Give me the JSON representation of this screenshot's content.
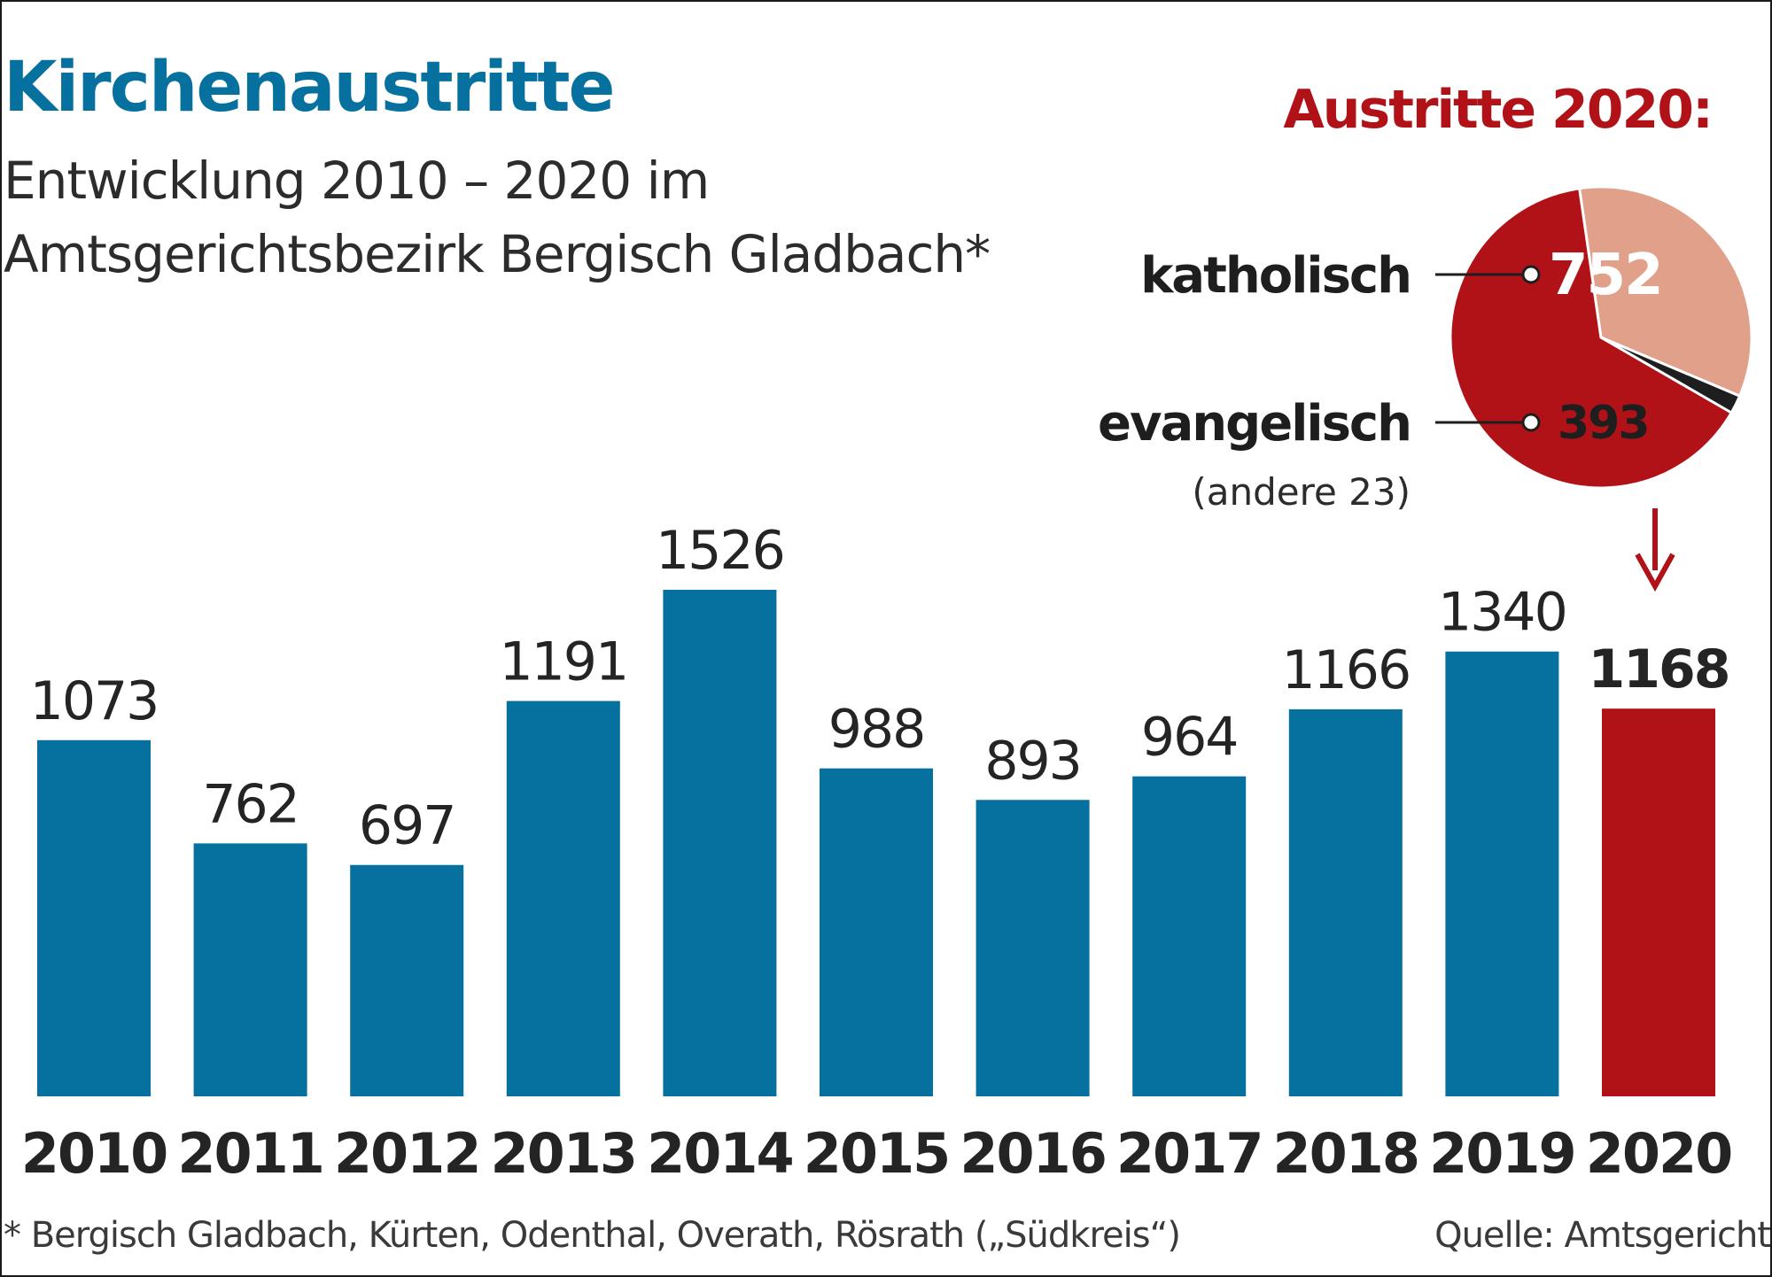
{
  "title": "Kirchenaustritte",
  "subtitle_line1": "Entwicklung 2010 – 2020 im",
  "subtitle_line2": "Amtsgerichtsbezirk Bergisch Gladbach*",
  "footnote": "* Bergisch Gladbach, Kürten, Odenthal, Overath, Rösrath („Südkreis“)",
  "source": "Quelle: Amtsgericht",
  "colors": {
    "bar": "#06709f",
    "highlight": "#b01218",
    "catholic": "#b01218",
    "protestant": "#e1a08a",
    "other": "#1e1e1e"
  },
  "chart_data": [
    {
      "type": "bar",
      "categories": [
        "2010",
        "2011",
        "2012",
        "2013",
        "2014",
        "2015",
        "2016",
        "2017",
        "2018",
        "2019",
        "2020"
      ],
      "values": [
        1073,
        762,
        697,
        1191,
        1526,
        988,
        893,
        964,
        1166,
        1340,
        1168
      ],
      "highlight_category": "2020",
      "title": "Kirchenaustritte",
      "subtitle": "Entwicklung 2010 – 2020 im Amtsgerichtsbezirk Bergisch Gladbach*",
      "xlabel": "",
      "ylabel": "",
      "ylim": [
        0,
        1526
      ],
      "grid": false,
      "legend": "none"
    },
    {
      "type": "pie",
      "title": "Austritte 2020:",
      "slices": [
        {
          "label": "katholisch",
          "value": 752,
          "value_label": "752"
        },
        {
          "label": "evangelisch",
          "value": 393,
          "value_label": "393"
        },
        {
          "label": "andere",
          "value": 23,
          "value_label": "(andere 23)"
        }
      ],
      "total": 1168
    }
  ]
}
